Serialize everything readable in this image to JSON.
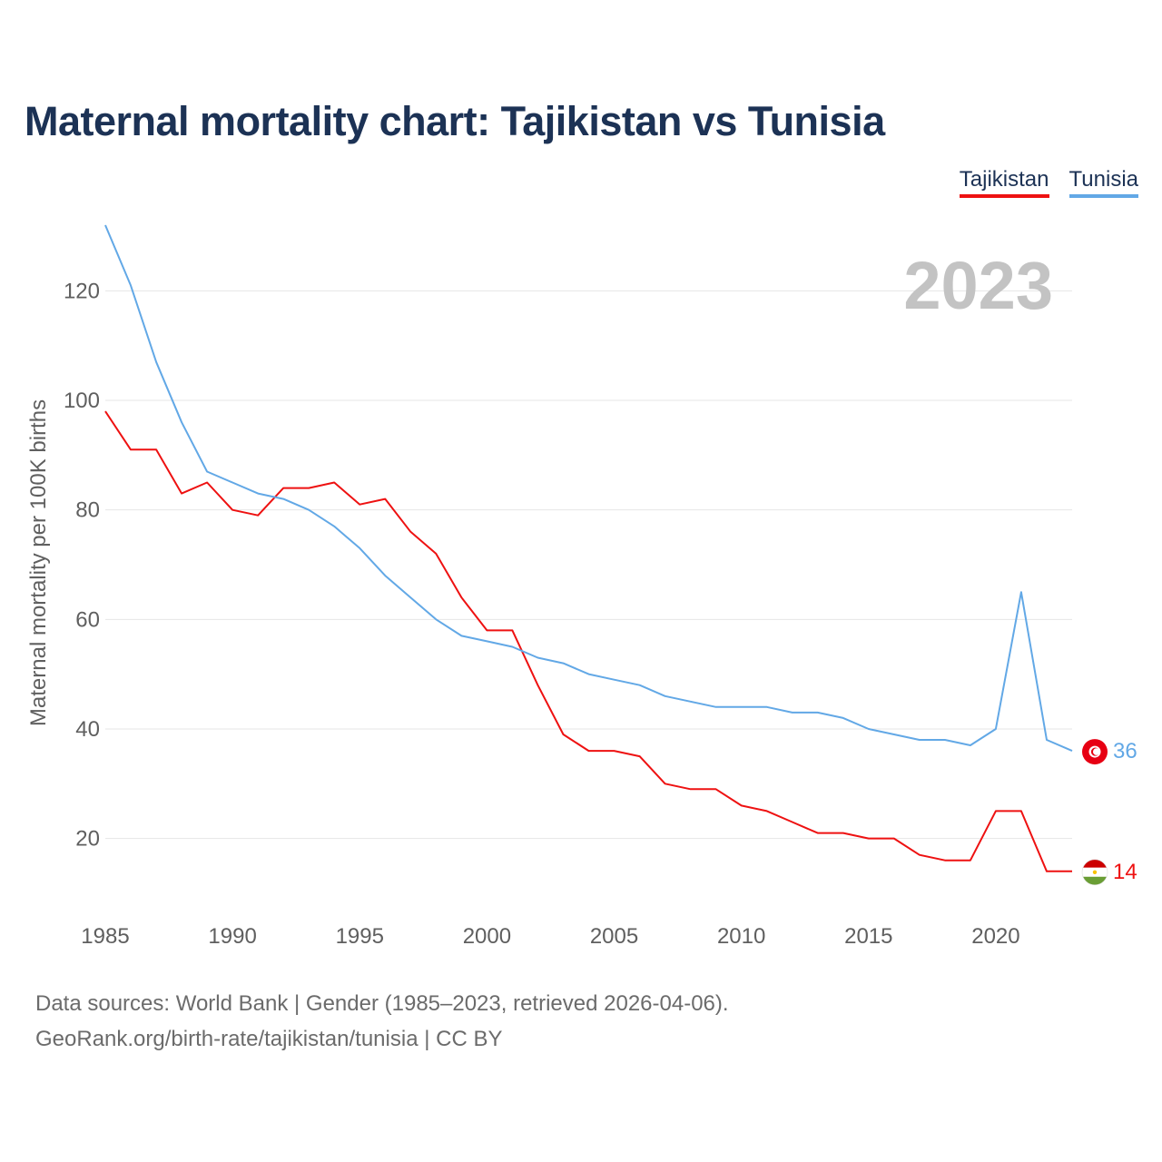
{
  "title": "Maternal mortality chart: Tajikistan vs Tunisia",
  "legend": [
    {
      "label": "Tajikistan",
      "color": "#ee1111"
    },
    {
      "label": "Tunisia",
      "color": "#62a8e6"
    }
  ],
  "year_watermark": "2023",
  "footer": {
    "line1": "Data sources: World Bank | Gender (1985–2023, retrieved 2026-04-06).",
    "line2": "GeoRank.org/birth-rate/tajikistan/tunisia | CC BY"
  },
  "chart_data": {
    "type": "line",
    "title": "Maternal mortality chart: Tajikistan vs Tunisia",
    "xlabel": "",
    "ylabel": "Maternal mortality per 100K births",
    "xlim": [
      1985,
      2023
    ],
    "ylim": [
      7,
      133
    ],
    "grid": true,
    "xticks": [
      1985,
      1990,
      1995,
      2000,
      2005,
      2010,
      2015,
      2020
    ],
    "yticks": [
      20,
      40,
      60,
      80,
      100,
      120
    ],
    "x": [
      1985,
      1986,
      1987,
      1988,
      1989,
      1990,
      1991,
      1992,
      1993,
      1994,
      1995,
      1996,
      1997,
      1998,
      1999,
      2000,
      2001,
      2002,
      2003,
      2004,
      2005,
      2006,
      2007,
      2008,
      2009,
      2010,
      2011,
      2012,
      2013,
      2014,
      2015,
      2016,
      2017,
      2018,
      2019,
      2020,
      2021,
      2022,
      2023
    ],
    "series": [
      {
        "name": "Tajikistan",
        "color": "#ee1111",
        "end_label": "14",
        "values": [
          98,
          91,
          91,
          83,
          85,
          80,
          79,
          84,
          84,
          85,
          81,
          82,
          76,
          72,
          64,
          58,
          58,
          48,
          39,
          36,
          36,
          35,
          30,
          29,
          29,
          26,
          25,
          23,
          21,
          21,
          20,
          20,
          17,
          16,
          16,
          25,
          25,
          14,
          14
        ]
      },
      {
        "name": "Tunisia",
        "color": "#62a8e6",
        "end_label": "36",
        "values": [
          132,
          121,
          107,
          96,
          87,
          85,
          83,
          82,
          80,
          77,
          73,
          68,
          64,
          60,
          57,
          56,
          55,
          53,
          52,
          50,
          49,
          48,
          46,
          45,
          44,
          44,
          44,
          43,
          43,
          42,
          40,
          39,
          38,
          38,
          37,
          40,
          65,
          38,
          36
        ]
      }
    ]
  }
}
